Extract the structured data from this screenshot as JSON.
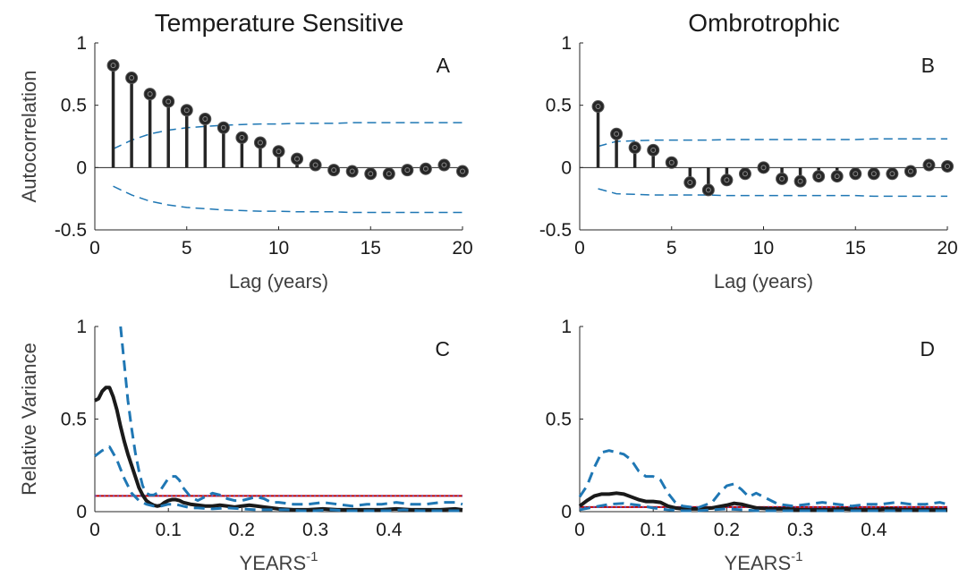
{
  "column_titles": [
    "Temperature Sensitive",
    "Ombrotrophic"
  ],
  "colors": {
    "stem": "#262626",
    "bounds": "#1f77b4",
    "noise": "#c00000",
    "spectrum": "#1a1a1a"
  },
  "chart_data": [
    {
      "panel": "A",
      "type": "stem",
      "ylabel": "Autocorrelation",
      "xlabel": "Lag (years)",
      "xlim": [
        0,
        20
      ],
      "ylim": [
        -0.5,
        1
      ],
      "xticks": [
        0,
        5,
        10,
        15,
        20
      ],
      "yticks": [
        -0.5,
        0,
        0.5,
        1
      ],
      "xtick_labels": [
        "0",
        "5",
        "10",
        "15",
        "20"
      ],
      "ytick_labels": [
        "-0.5",
        "0",
        "0.5",
        "1"
      ],
      "lags": [
        1,
        2,
        3,
        4,
        5,
        6,
        7,
        8,
        9,
        10,
        11,
        12,
        13,
        14,
        15,
        16,
        17,
        18,
        19,
        20
      ],
      "acf": [
        0.82,
        0.72,
        0.59,
        0.53,
        0.46,
        0.39,
        0.32,
        0.24,
        0.2,
        0.13,
        0.07,
        0.02,
        -0.02,
        -0.03,
        -0.05,
        -0.05,
        -0.02,
        -0.01,
        0.02,
        -0.03
      ],
      "bound_x": [
        1,
        2,
        3,
        4,
        5,
        6,
        7,
        8,
        9,
        10,
        11,
        12,
        13,
        14,
        15,
        16,
        17,
        18,
        19,
        20
      ],
      "bound_upper": [
        0.15,
        0.22,
        0.27,
        0.3,
        0.32,
        0.33,
        0.34,
        0.345,
        0.35,
        0.35,
        0.355,
        0.355,
        0.355,
        0.36,
        0.36,
        0.36,
        0.36,
        0.36,
        0.36,
        0.36
      ],
      "bound_lower": [
        -0.15,
        -0.22,
        -0.27,
        -0.3,
        -0.32,
        -0.33,
        -0.34,
        -0.345,
        -0.35,
        -0.35,
        -0.355,
        -0.355,
        -0.355,
        -0.36,
        -0.36,
        -0.36,
        -0.36,
        -0.36,
        -0.36,
        -0.36
      ]
    },
    {
      "panel": "B",
      "type": "stem",
      "ylabel": "",
      "xlabel": "Lag (years)",
      "xlim": [
        0,
        20
      ],
      "ylim": [
        -0.5,
        1
      ],
      "xticks": [
        0,
        5,
        10,
        15,
        20
      ],
      "yticks": [
        -0.5,
        0,
        0.5,
        1
      ],
      "xtick_labels": [
        "0",
        "5",
        "10",
        "15",
        "20"
      ],
      "ytick_labels": [
        "-0.5",
        "0",
        "0.5",
        "1"
      ],
      "lags": [
        1,
        2,
        3,
        4,
        5,
        6,
        7,
        8,
        9,
        10,
        11,
        12,
        13,
        14,
        15,
        16,
        17,
        18,
        19,
        20
      ],
      "acf": [
        0.49,
        0.27,
        0.16,
        0.14,
        0.04,
        -0.12,
        -0.18,
        -0.1,
        -0.05,
        0.0,
        -0.09,
        -0.11,
        -0.07,
        -0.07,
        -0.05,
        -0.05,
        -0.05,
        -0.03,
        0.02,
        0.01
      ],
      "bound_x": [
        1,
        2,
        3,
        4,
        5,
        6,
        7,
        8,
        9,
        10,
        11,
        12,
        13,
        14,
        15,
        16,
        17,
        18,
        19,
        20
      ],
      "bound_upper": [
        0.17,
        0.21,
        0.215,
        0.22,
        0.22,
        0.22,
        0.22,
        0.225,
        0.225,
        0.225,
        0.225,
        0.225,
        0.225,
        0.225,
        0.225,
        0.23,
        0.23,
        0.23,
        0.23,
        0.23
      ],
      "bound_lower": [
        -0.17,
        -0.21,
        -0.215,
        -0.22,
        -0.22,
        -0.22,
        -0.22,
        -0.225,
        -0.225,
        -0.225,
        -0.225,
        -0.225,
        -0.225,
        -0.225,
        -0.225,
        -0.23,
        -0.23,
        -0.23,
        -0.23,
        -0.23
      ]
    },
    {
      "panel": "C",
      "type": "line",
      "ylabel": "Relative Variance",
      "xlabel": "YEARS",
      "xlabel_superscript": "-1",
      "xlim": [
        0,
        0.5
      ],
      "ylim": [
        0,
        1
      ],
      "xticks": [
        0,
        0.1,
        0.2,
        0.3,
        0.4
      ],
      "yticks": [
        0,
        0.5,
        1
      ],
      "xtick_labels": [
        "0",
        "0.1",
        "0.2",
        "0.3",
        "0.4"
      ],
      "ytick_labels": [
        "0",
        "0.5",
        "1"
      ],
      "noise_level": 0.085,
      "series": [
        {
          "role": "spectrum",
          "x": [
            0,
            0.005,
            0.01,
            0.015,
            0.02,
            0.025,
            0.03,
            0.035,
            0.04,
            0.045,
            0.05,
            0.055,
            0.06,
            0.065,
            0.07,
            0.075,
            0.08,
            0.085,
            0.09,
            0.095,
            0.1,
            0.105,
            0.11,
            0.115,
            0.12,
            0.13,
            0.14,
            0.15,
            0.16,
            0.17,
            0.18,
            0.19,
            0.2,
            0.21,
            0.22,
            0.23,
            0.24,
            0.25,
            0.27,
            0.29,
            0.31,
            0.33,
            0.35,
            0.37,
            0.39,
            0.41,
            0.43,
            0.45,
            0.47,
            0.49,
            0.5
          ],
          "y": [
            0.6,
            0.61,
            0.65,
            0.67,
            0.67,
            0.62,
            0.55,
            0.46,
            0.38,
            0.31,
            0.25,
            0.19,
            0.13,
            0.09,
            0.06,
            0.045,
            0.035,
            0.03,
            0.035,
            0.05,
            0.06,
            0.065,
            0.065,
            0.06,
            0.05,
            0.04,
            0.035,
            0.03,
            0.03,
            0.035,
            0.03,
            0.025,
            0.03,
            0.035,
            0.03,
            0.025,
            0.02,
            0.015,
            0.01,
            0.01,
            0.015,
            0.01,
            0.01,
            0.01,
            0.01,
            0.015,
            0.01,
            0.01,
            0.01,
            0.015,
            0.01
          ]
        },
        {
          "role": "upper",
          "x": [
            0.035,
            0.04,
            0.045,
            0.05,
            0.055,
            0.06,
            0.065,
            0.07,
            0.075,
            0.08,
            0.085,
            0.09,
            0.095,
            0.1,
            0.105,
            0.11,
            0.115,
            0.12,
            0.13,
            0.14,
            0.15,
            0.16,
            0.17,
            0.18,
            0.19,
            0.2,
            0.21,
            0.22,
            0.23,
            0.24,
            0.25,
            0.27,
            0.29,
            0.31,
            0.33,
            0.35,
            0.37,
            0.39,
            0.41,
            0.43,
            0.45,
            0.47,
            0.49,
            0.5
          ],
          "y": [
            1.0,
            0.8,
            0.6,
            0.45,
            0.32,
            0.22,
            0.14,
            0.1,
            0.09,
            0.09,
            0.1,
            0.12,
            0.15,
            0.18,
            0.19,
            0.19,
            0.17,
            0.13,
            0.08,
            0.06,
            0.08,
            0.1,
            0.09,
            0.07,
            0.06,
            0.06,
            0.07,
            0.08,
            0.07,
            0.05,
            0.05,
            0.04,
            0.04,
            0.05,
            0.04,
            0.03,
            0.04,
            0.04,
            0.05,
            0.04,
            0.04,
            0.05,
            0.05,
            0.04
          ]
        },
        {
          "role": "lower",
          "x": [
            0,
            0.01,
            0.02,
            0.03,
            0.04,
            0.05,
            0.06,
            0.07,
            0.08,
            0.09,
            0.1,
            0.11,
            0.12,
            0.13,
            0.14,
            0.16,
            0.18,
            0.2,
            0.22,
            0.24,
            0.26,
            0.28,
            0.3,
            0.32,
            0.34,
            0.36,
            0.38,
            0.4,
            0.42,
            0.44,
            0.46,
            0.48,
            0.5
          ],
          "y": [
            0.3,
            0.33,
            0.35,
            0.28,
            0.18,
            0.1,
            0.06,
            0.04,
            0.03,
            0.03,
            0.04,
            0.04,
            0.03,
            0.02,
            0.02,
            0.015,
            0.02,
            0.015,
            0.01,
            0.01,
            0.01,
            0.005,
            0.005,
            0.01,
            0.005,
            0.005,
            0.005,
            0.005,
            0.01,
            0.005,
            0.005,
            0.005,
            0.005
          ]
        }
      ]
    },
    {
      "panel": "D",
      "type": "line",
      "ylabel": "",
      "xlabel": "YEARS",
      "xlabel_superscript": "-1",
      "xlim": [
        0,
        0.5
      ],
      "ylim": [
        0,
        1
      ],
      "xticks": [
        0,
        0.1,
        0.2,
        0.3,
        0.4
      ],
      "yticks": [
        0,
        0.5,
        1
      ],
      "xtick_labels": [
        "0",
        "0.1",
        "0.2",
        "0.3",
        "0.4"
      ],
      "ytick_labels": [
        "0",
        "0.5",
        "1"
      ],
      "noise_level": 0.025,
      "series": [
        {
          "role": "spectrum",
          "x": [
            0,
            0.01,
            0.02,
            0.03,
            0.04,
            0.05,
            0.06,
            0.07,
            0.08,
            0.09,
            0.1,
            0.11,
            0.12,
            0.13,
            0.14,
            0.16,
            0.18,
            0.2,
            0.21,
            0.22,
            0.23,
            0.24,
            0.26,
            0.28,
            0.3,
            0.32,
            0.34,
            0.36,
            0.38,
            0.4,
            0.42,
            0.44,
            0.46,
            0.48,
            0.5
          ],
          "y": [
            0.03,
            0.06,
            0.085,
            0.095,
            0.095,
            0.1,
            0.095,
            0.08,
            0.065,
            0.055,
            0.055,
            0.05,
            0.03,
            0.02,
            0.015,
            0.015,
            0.02,
            0.035,
            0.045,
            0.04,
            0.03,
            0.02,
            0.015,
            0.015,
            0.01,
            0.01,
            0.01,
            0.015,
            0.01,
            0.01,
            0.015,
            0.01,
            0.01,
            0.01,
            0.01
          ]
        },
        {
          "role": "upper",
          "x": [
            0,
            0.01,
            0.02,
            0.03,
            0.04,
            0.05,
            0.06,
            0.07,
            0.08,
            0.09,
            0.1,
            0.11,
            0.12,
            0.13,
            0.14,
            0.16,
            0.18,
            0.19,
            0.2,
            0.21,
            0.22,
            0.23,
            0.24,
            0.25,
            0.27,
            0.29,
            0.31,
            0.33,
            0.35,
            0.37,
            0.39,
            0.41,
            0.43,
            0.45,
            0.47,
            0.49,
            0.5
          ],
          "y": [
            0.08,
            0.14,
            0.24,
            0.32,
            0.33,
            0.32,
            0.31,
            0.28,
            0.22,
            0.19,
            0.19,
            0.17,
            0.1,
            0.05,
            0.03,
            0.02,
            0.05,
            0.1,
            0.14,
            0.15,
            0.12,
            0.08,
            0.1,
            0.08,
            0.04,
            0.03,
            0.04,
            0.05,
            0.04,
            0.03,
            0.04,
            0.04,
            0.05,
            0.04,
            0.04,
            0.05,
            0.04
          ]
        },
        {
          "role": "lower",
          "x": [
            0,
            0.02,
            0.04,
            0.06,
            0.08,
            0.1,
            0.12,
            0.14,
            0.16,
            0.18,
            0.2,
            0.22,
            0.24,
            0.26,
            0.28,
            0.3,
            0.32,
            0.34,
            0.36,
            0.38,
            0.4,
            0.42,
            0.44,
            0.46,
            0.48,
            0.5
          ],
          "y": [
            0.01,
            0.025,
            0.04,
            0.045,
            0.035,
            0.02,
            0.01,
            0.005,
            0.005,
            0.01,
            0.015,
            0.01,
            0.005,
            0.005,
            0.005,
            0.005,
            0.005,
            0.005,
            0.005,
            0.005,
            0.005,
            0.005,
            0.005,
            0.005,
            0.005,
            0.005
          ]
        }
      ]
    }
  ]
}
